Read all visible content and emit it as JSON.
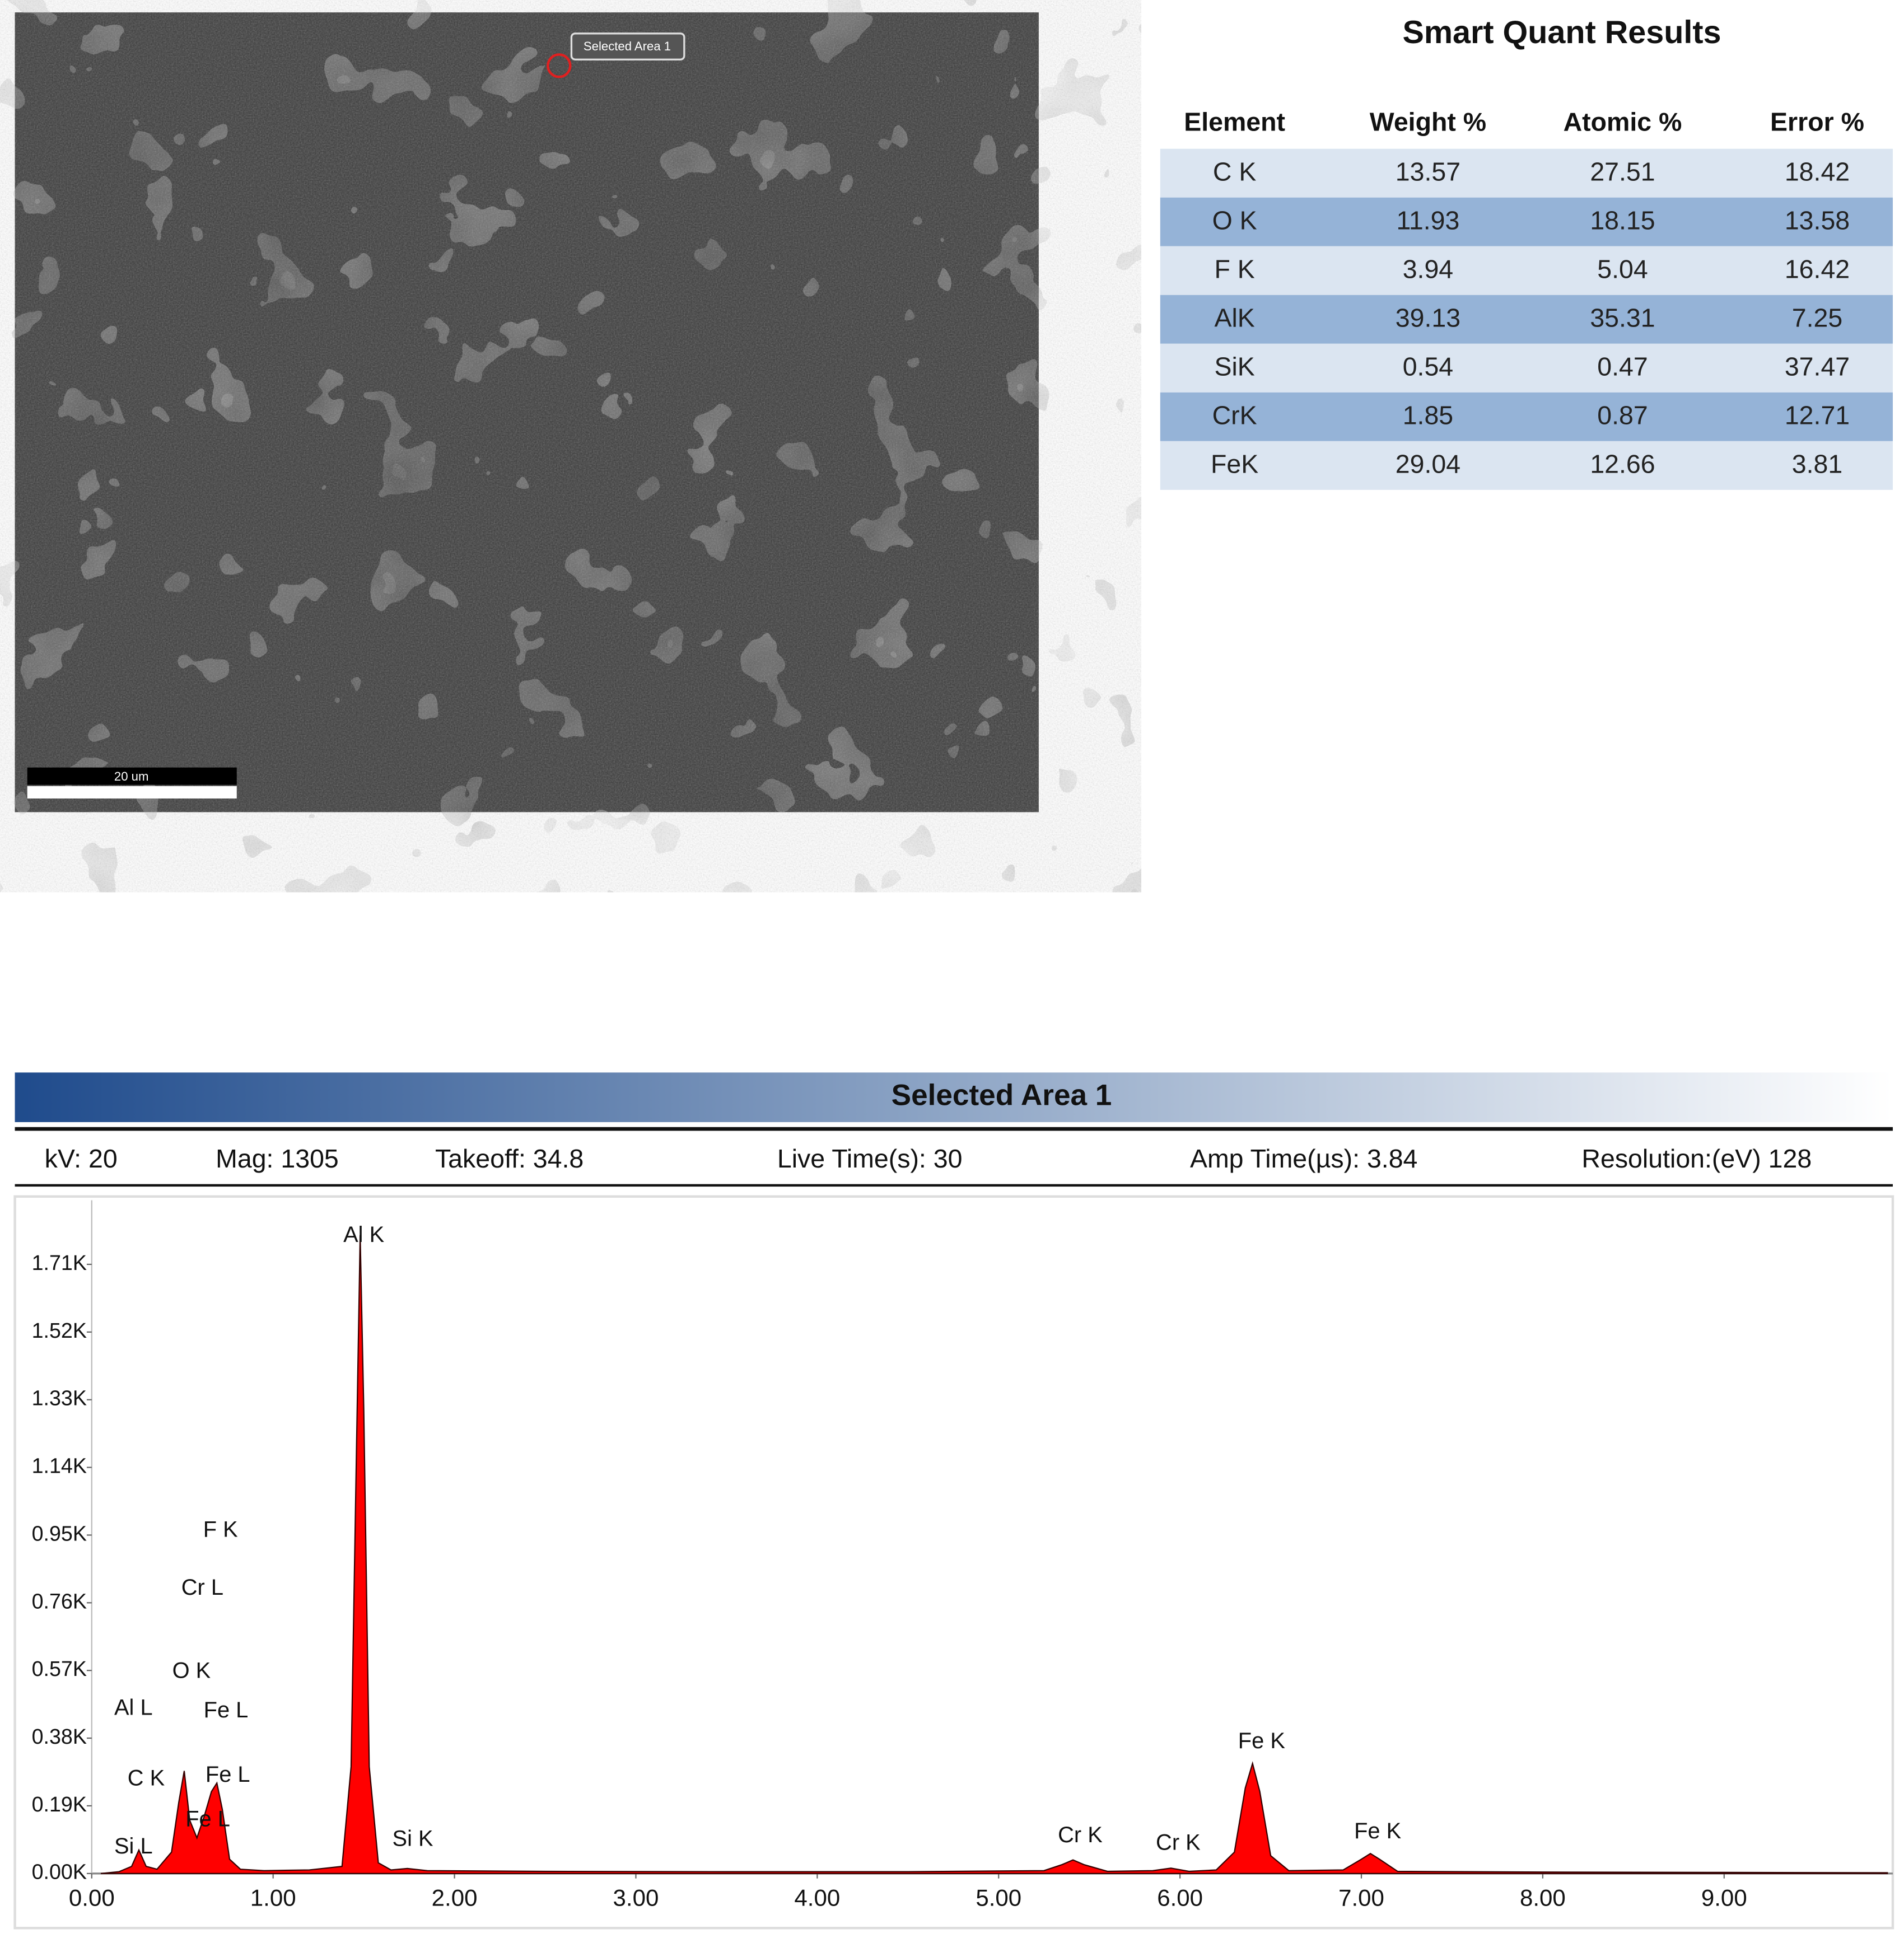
{
  "sem_image": {
    "area_label": "Selected Area 1",
    "scale_label": "20 um"
  },
  "table": {
    "title": "Smart Quant Results",
    "columns": [
      "Element",
      "Weight %",
      "Atomic %",
      "Error %"
    ],
    "rows": [
      [
        "C K",
        "13.57",
        "27.51",
        "18.42"
      ],
      [
        "O K",
        "11.93",
        "18.15",
        "13.58"
      ],
      [
        "F K",
        "3.94",
        "5.04",
        "16.42"
      ],
      [
        "AlK",
        "39.13",
        "35.31",
        "7.25"
      ],
      [
        "SiK",
        "0.54",
        "0.47",
        "37.47"
      ],
      [
        "CrK",
        "1.85",
        "0.87",
        "12.71"
      ],
      [
        "FeK",
        "29.04",
        "12.66",
        "3.81"
      ]
    ]
  },
  "spectrum_header": {
    "title": "Selected Area 1",
    "params": [
      "kV: 20",
      "Mag: 1305",
      "Takeoff: 34.8",
      "Live Time(s): 30",
      "Amp Time(µs): 3.84",
      "Resolution:(eV) 128"
    ]
  },
  "chart_data": {
    "type": "area",
    "color": "#ff0000",
    "x": [
      0.05,
      0.15,
      0.22,
      0.26,
      0.3,
      0.36,
      0.44,
      0.48,
      0.51,
      0.54,
      0.58,
      0.62,
      0.66,
      0.69,
      0.72,
      0.76,
      0.82,
      0.95,
      1.2,
      1.38,
      1.43,
      1.46,
      1.48,
      1.5,
      1.53,
      1.58,
      1.65,
      1.74,
      1.85,
      2.5,
      3.5,
      4.5,
      5.25,
      5.35,
      5.41,
      5.47,
      5.6,
      5.85,
      5.95,
      6.05,
      6.2,
      6.3,
      6.36,
      6.4,
      6.44,
      6.5,
      6.6,
      6.9,
      7.0,
      7.05,
      7.1,
      7.2,
      8.0,
      9.0,
      9.9
    ],
    "values": [
      0,
      5,
      20,
      66,
      20,
      12,
      60,
      200,
      288,
      150,
      100,
      160,
      230,
      254,
      180,
      40,
      12,
      8,
      10,
      20,
      300,
      1200,
      1792,
      1300,
      300,
      30,
      10,
      14,
      8,
      6,
      5,
      5,
      8,
      25,
      38,
      25,
      6,
      8,
      15,
      6,
      10,
      60,
      240,
      309,
      230,
      50,
      8,
      10,
      40,
      56,
      40,
      6,
      4,
      3,
      2
    ],
    "xlim": [
      0,
      9.93
    ],
    "ylim": [
      0,
      1890
    ],
    "xticks": [
      {
        "value": 0,
        "label": "0.00"
      },
      {
        "value": 1,
        "label": "1.00"
      },
      {
        "value": 2,
        "label": "2.00"
      },
      {
        "value": 3,
        "label": "3.00"
      },
      {
        "value": 4,
        "label": "4.00"
      },
      {
        "value": 5,
        "label": "5.00"
      },
      {
        "value": 6,
        "label": "6.00"
      },
      {
        "value": 7,
        "label": "7.00"
      },
      {
        "value": 8,
        "label": "8.00"
      },
      {
        "value": 9,
        "label": "9.00"
      }
    ],
    "yticks": [
      {
        "value": 0,
        "label": "0.00K"
      },
      {
        "value": 190,
        "label": "0.19K"
      },
      {
        "value": 380,
        "label": "0.38K"
      },
      {
        "value": 570,
        "label": "0.57K"
      },
      {
        "value": 760,
        "label": "0.76K"
      },
      {
        "value": 950,
        "label": "0.95K"
      },
      {
        "value": 1140,
        "label": "1.14K"
      },
      {
        "value": 1330,
        "label": "1.33K"
      },
      {
        "value": 1520,
        "label": "1.52K"
      },
      {
        "value": 1710,
        "label": "1.71K"
      }
    ],
    "annotations": [
      {
        "text": "Al K",
        "x": 1.5,
        "y": 1789
      },
      {
        "text": "F  K",
        "x": 0.71,
        "y": 962
      },
      {
        "text": "Cr L",
        "x": 0.61,
        "y": 799
      },
      {
        "text": "O  K",
        "x": 0.55,
        "y": 566
      },
      {
        "text": "Al L",
        "x": 0.23,
        "y": 462
      },
      {
        "text": "Fe L",
        "x": 0.74,
        "y": 455
      },
      {
        "text": "C  K",
        "x": 0.3,
        "y": 264
      },
      {
        "text": "Fe L",
        "x": 0.75,
        "y": 274
      },
      {
        "text": "Fe L",
        "x": 0.64,
        "y": 149
      },
      {
        "text": "Si L",
        "x": 0.23,
        "y": 73
      },
      {
        "text": "Si K",
        "x": 1.77,
        "y": 94
      },
      {
        "text": "Cr K",
        "x": 5.45,
        "y": 104
      },
      {
        "text": "Cr K",
        "x": 5.99,
        "y": 83
      },
      {
        "text": "Fe K",
        "x": 6.45,
        "y": 368
      },
      {
        "text": "Fe K",
        "x": 7.09,
        "y": 115
      }
    ]
  }
}
